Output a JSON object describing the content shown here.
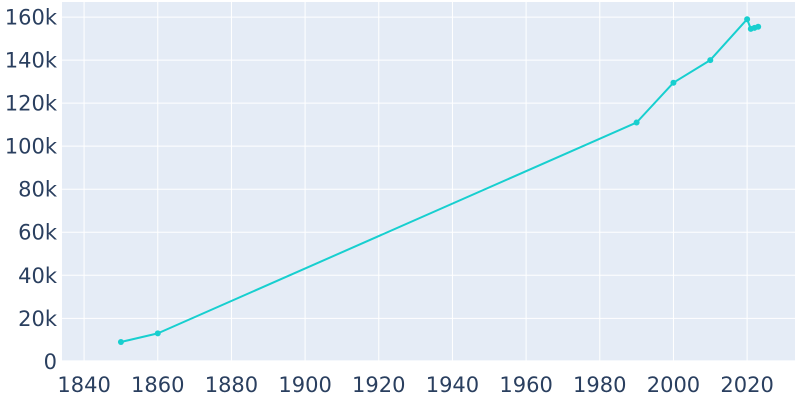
{
  "chart_data": {
    "type": "line",
    "title": "",
    "xlabel": "",
    "ylabel": "",
    "x": [
      1850,
      1860,
      1990,
      2000,
      2010,
      2020,
      2021,
      2022,
      2023
    ],
    "series": [
      {
        "values": [
          9000,
          13000,
          111000,
          129500,
          140000,
          159000,
          154500,
          155000,
          155500
        ]
      }
    ],
    "xlim": [
      1834,
      2033
    ],
    "ylim": [
      -300,
      167000
    ],
    "x_ticks": [
      1840,
      1860,
      1880,
      1900,
      1920,
      1940,
      1960,
      1980,
      2000,
      2020
    ],
    "x_tick_labels": [
      "1840",
      "1860",
      "1880",
      "1900",
      "1920",
      "1940",
      "1960",
      "1980",
      "2000",
      "2020"
    ],
    "y_ticks": [
      0,
      20000,
      40000,
      60000,
      80000,
      100000,
      120000,
      140000,
      160000
    ],
    "y_tick_labels": [
      "0",
      "20k",
      "40k",
      "60k",
      "80k",
      "100k",
      "120k",
      "140k",
      "160k"
    ],
    "grid": true,
    "legend": "none",
    "colors": {
      "line": "#17cfcf",
      "plot_bg": "#e5ecf6",
      "grid": "#ffffff",
      "text": "#2a3f5f"
    }
  }
}
